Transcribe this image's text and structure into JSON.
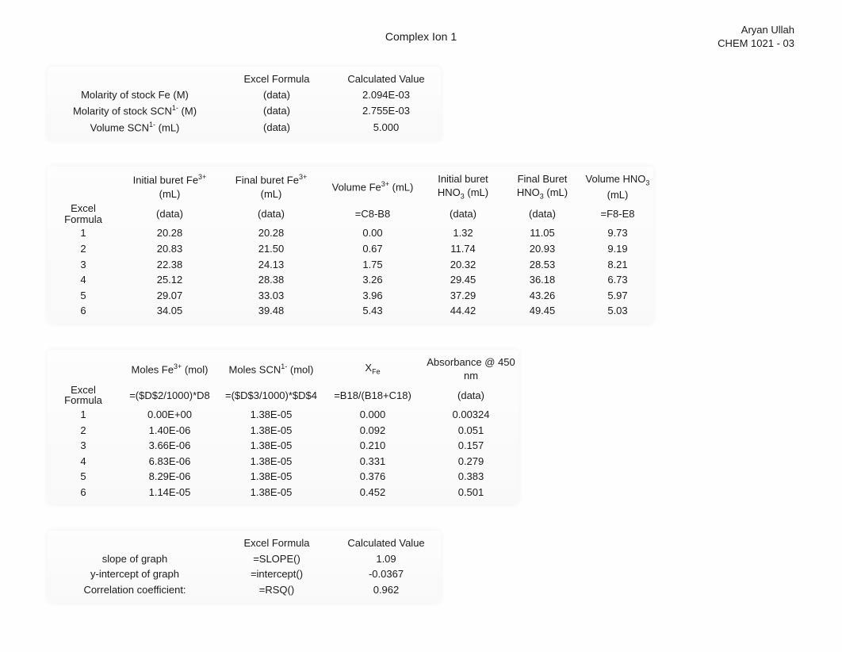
{
  "header": {
    "student": "Aryan Ullah",
    "course": "CHEM 1021 - 03",
    "title": "Complex Ion 1"
  },
  "table1": {
    "col_formula": "Excel Formula",
    "col_value": "Calculated Value",
    "rows": [
      {
        "label": "Molarity of stock Fe (M)",
        "formula": "(data)",
        "value": "2.094E-03"
      },
      {
        "label_html": "Molarity of stock SCN<sup>1-</sup> (M)",
        "formula": "(data)",
        "value": "2.755E-03"
      },
      {
        "label_html": "Volume SCN<sup>1-</sup> (mL)",
        "formula": "(data)",
        "value": "5.000"
      }
    ]
  },
  "table2": {
    "headers": {
      "c1_html": "Initial buret Fe<sup>3+</sup> (mL)",
      "c2_html": "Final buret Fe<sup>3+</sup> (mL)",
      "c3_html": "Volume Fe<sup>3+</sup> (mL)",
      "c4_html": "Initial buret HNO<sub>3</sub> (mL)",
      "c5_html": "Final Buret HNO<sub>3</sub> (mL)",
      "c6_html": "Volume HNO<sub>3</sub> (mL)"
    },
    "formula_label_top": "Excel",
    "formula_label_bottom": "Formula",
    "formula_row": [
      "(data)",
      "(data)",
      "=C8-B8",
      "(data)",
      "(data)",
      "=F8-E8"
    ],
    "rows": [
      [
        "1",
        "20.28",
        "20.28",
        "0.00",
        "1.32",
        "11.05",
        "9.73"
      ],
      [
        "2",
        "20.83",
        "21.50",
        "0.67",
        "11.74",
        "20.93",
        "9.19"
      ],
      [
        "3",
        "22.38",
        "24.13",
        "1.75",
        "20.32",
        "28.53",
        "8.21"
      ],
      [
        "4",
        "25.12",
        "28.38",
        "3.26",
        "29.45",
        "36.18",
        "6.73"
      ],
      [
        "5",
        "29.07",
        "33.03",
        "3.96",
        "37.29",
        "43.26",
        "5.97"
      ],
      [
        "6",
        "34.05",
        "39.48",
        "5.43",
        "44.42",
        "49.45",
        "5.03"
      ]
    ]
  },
  "table3": {
    "headers": {
      "c1_html": "Moles Fe<sup>3+</sup> (mol)",
      "c2_html": "Moles SCN<sup>1-</sup> (mol)",
      "c3_html": "X<sub>Fe</sub>",
      "c4": "Absorbance @ 450 nm"
    },
    "formula_label_top": "Excel",
    "formula_label_bottom": "Formula",
    "formula_row": [
      "=($D$2/1000)*D8",
      "=($D$3/1000)*$D$4",
      "=B18/(B18+C18)",
      "(data)"
    ],
    "rows": [
      [
        "1",
        "0.00E+00",
        "1.38E-05",
        "0.000",
        "0.00324"
      ],
      [
        "2",
        "1.40E-06",
        "1.38E-05",
        "0.092",
        "0.051"
      ],
      [
        "3",
        "3.66E-06",
        "1.38E-05",
        "0.210",
        "0.157"
      ],
      [
        "4",
        "6.83E-06",
        "1.38E-05",
        "0.331",
        "0.279"
      ],
      [
        "5",
        "8.29E-06",
        "1.38E-05",
        "0.376",
        "0.383"
      ],
      [
        "6",
        "1.14E-05",
        "1.38E-05",
        "0.452",
        "0.501"
      ]
    ]
  },
  "table4": {
    "col_formula": "Excel Formula",
    "col_value": "Calculated Value",
    "rows": [
      {
        "label": "slope of graph",
        "formula": "=SLOPE()",
        "value": "1.09"
      },
      {
        "label": "y-intercept of graph",
        "formula": "=intercept()",
        "value": "-0.0367"
      },
      {
        "label": "Correlation coefficient:",
        "formula": "=RSQ()",
        "value": "0.962"
      }
    ]
  }
}
